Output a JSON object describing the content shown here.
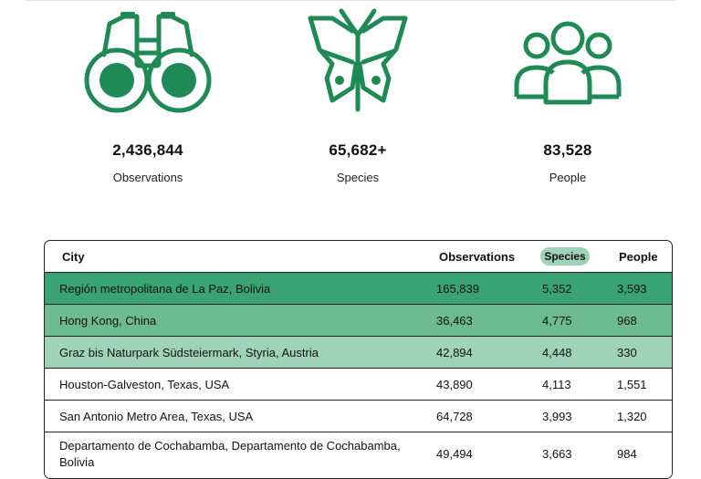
{
  "stats": [
    {
      "icon": "binoculars-icon",
      "value": "2,436,844",
      "label": "Observations"
    },
    {
      "icon": "butterfly-icon",
      "value": "65,682+",
      "label": "Species"
    },
    {
      "icon": "people-icon",
      "value": "83,528",
      "label": "People"
    }
  ],
  "colors": {
    "icon_green": "#1f8a55",
    "row_1": "#3aa373",
    "row_2": "#6dbb92",
    "row_3": "#9fd3b7",
    "pill": "#9fd3b7"
  },
  "table": {
    "headers": {
      "city": "City",
      "observations": "Observations",
      "species": "Species",
      "people": "People"
    },
    "sorted_by": "Species",
    "rows": [
      {
        "city": "Región metropolitana de La Paz, Bolivia",
        "observations": "165,839",
        "species": "5,352",
        "people": "3,593"
      },
      {
        "city": "Hong Kong, China",
        "observations": "36,463",
        "species": "4,775",
        "people": "968"
      },
      {
        "city": "Graz bis Naturpark Südsteiermark, Styria, Austria",
        "observations": "42,894",
        "species": "4,448",
        "people": "330"
      },
      {
        "city": "Houston-Galveston, Texas, USA",
        "observations": "43,890",
        "species": "4,113",
        "people": "1,551"
      },
      {
        "city": "San Antonio Metro Area, Texas, USA",
        "observations": "64,728",
        "species": "3,993",
        "people": "1,320"
      },
      {
        "city": "Departamento de Cochabamba, Departamento de Cochabamba, Bolivia",
        "observations": "49,494",
        "species": "3,663",
        "people": "984"
      }
    ]
  }
}
